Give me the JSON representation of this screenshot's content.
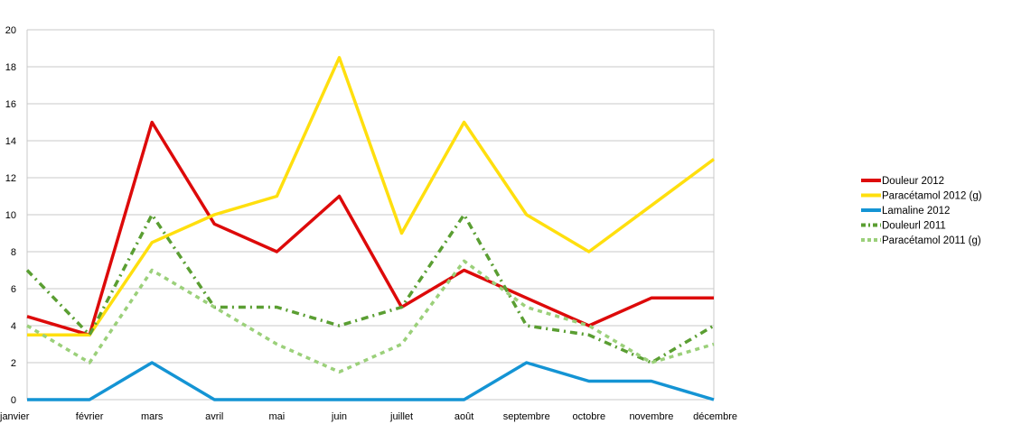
{
  "chart_data": {
    "type": "line",
    "title": "",
    "xlabel": "",
    "ylabel": "",
    "categories": [
      "janvier",
      "février",
      "mars",
      "avril",
      "mai",
      "juin",
      "juillet",
      "août",
      "septembre",
      "octobre",
      "novembre",
      "décembre"
    ],
    "ylim": [
      0,
      20
    ],
    "yticks": [
      0,
      2,
      4,
      6,
      8,
      10,
      12,
      14,
      16,
      18,
      20
    ],
    "grid": "horizontal",
    "legend_position": "right",
    "series": [
      {
        "name": "Douleur 2012",
        "color": "#dd0a0a",
        "dash": "solid",
        "values": [
          4.5,
          3.5,
          15,
          9.5,
          8,
          11,
          5,
          7,
          5.5,
          4,
          5.5,
          5.5
        ]
      },
      {
        "name": "Paracétamol 2012 (g)",
        "color": "#ffdf0e",
        "dash": "solid",
        "values": [
          3.5,
          3.5,
          8.5,
          10,
          11,
          18.5,
          9,
          15,
          10,
          8,
          10.5,
          13
        ]
      },
      {
        "name": "Lamaline 2012",
        "color": "#1494d4",
        "dash": "solid",
        "values": [
          0,
          0,
          2,
          0,
          0,
          0,
          0,
          0,
          2,
          1,
          1,
          0
        ]
      },
      {
        "name": "Douleurl 2011",
        "color": "#5a9e32",
        "dash": "dash-dot",
        "values": [
          7,
          3.5,
          10,
          5,
          5,
          4,
          5,
          10,
          4,
          3.5,
          2,
          4
        ]
      },
      {
        "name": "Paracétamol 2011 (g)",
        "color": "#9bd07a",
        "dash": "dash",
        "values": [
          4,
          2,
          7,
          5,
          3,
          1.5,
          3,
          7.5,
          5,
          4,
          2,
          3
        ]
      }
    ]
  }
}
